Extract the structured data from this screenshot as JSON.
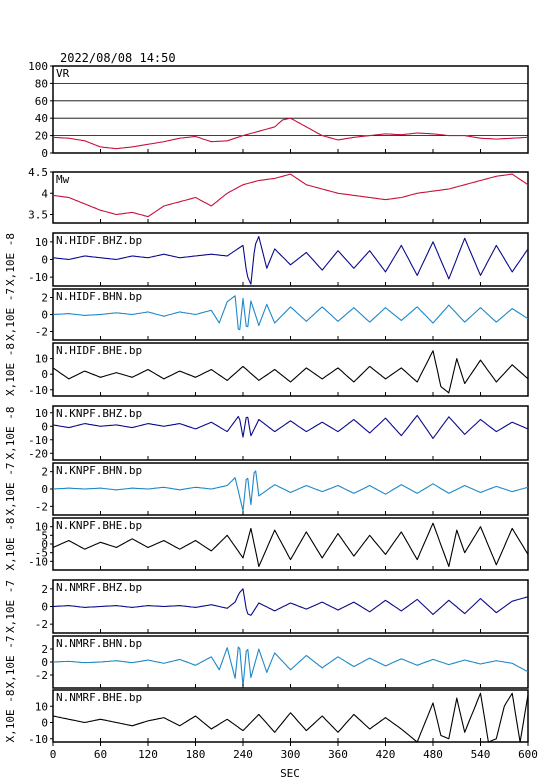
{
  "header": {
    "timestamp": "2022/08/08  14:50"
  },
  "colors": {
    "red": "#c8103c",
    "navy": "#0a0a8c",
    "cyan": "#1e88c8",
    "black": "#000000"
  },
  "chart_data": {
    "type": "line",
    "xlabel": "SEC",
    "xlim": [
      0,
      600
    ],
    "xticks": [
      0,
      60,
      120,
      180,
      240,
      300,
      360,
      420,
      480,
      540,
      600
    ],
    "panels": [
      {
        "label": "VR",
        "ylabel": "",
        "ylim": [
          0,
          100
        ],
        "yticks": [
          0,
          20,
          40,
          60,
          80,
          100
        ],
        "grid": true,
        "color": "red",
        "x": [
          0,
          20,
          40,
          60,
          80,
          100,
          120,
          140,
          160,
          180,
          200,
          220,
          240,
          260,
          280,
          290,
          300,
          320,
          340,
          360,
          380,
          400,
          420,
          440,
          460,
          480,
          500,
          520,
          540,
          560,
          580,
          600
        ],
        "y": [
          18,
          17,
          14,
          7,
          5,
          7,
          10,
          13,
          17,
          19,
          13,
          14,
          20,
          25,
          30,
          38,
          40,
          30,
          20,
          15,
          18,
          20,
          22,
          21,
          23,
          22,
          20,
          20,
          17,
          16,
          17,
          18
        ]
      },
      {
        "label": "Mw",
        "ylabel": "",
        "ylim": [
          3.3,
          4.5
        ],
        "yticks": [
          3.5,
          4.0,
          4.5
        ],
        "grid": false,
        "color": "red",
        "x": [
          0,
          20,
          40,
          60,
          80,
          100,
          120,
          140,
          160,
          180,
          200,
          220,
          240,
          260,
          280,
          300,
          320,
          340,
          360,
          380,
          400,
          420,
          440,
          460,
          480,
          500,
          520,
          540,
          560,
          580,
          600
        ],
        "y": [
          3.95,
          3.9,
          3.75,
          3.6,
          3.5,
          3.55,
          3.45,
          3.7,
          3.8,
          3.9,
          3.7,
          4.0,
          4.2,
          4.3,
          4.35,
          4.45,
          4.2,
          4.1,
          4.0,
          3.95,
          3.9,
          3.85,
          3.9,
          4.0,
          4.05,
          4.1,
          4.2,
          4.3,
          4.4,
          4.45,
          4.2
        ]
      },
      {
        "label": "N.HIDF.BHZ.bp",
        "ylabel": "X,10E -8",
        "ylim": [
          -15,
          15
        ],
        "yticks": [
          -10,
          0,
          10
        ],
        "color": "navy",
        "x": [
          0,
          20,
          40,
          60,
          80,
          100,
          120,
          140,
          160,
          180,
          200,
          220,
          230,
          240,
          245,
          250,
          255,
          260,
          270,
          280,
          300,
          320,
          340,
          360,
          380,
          400,
          420,
          440,
          460,
          480,
          500,
          520,
          540,
          560,
          580,
          600
        ],
        "y": [
          1,
          0,
          2,
          1,
          0,
          2,
          1,
          3,
          1,
          2,
          3,
          2,
          5,
          8,
          -9,
          -14,
          8,
          13,
          -5,
          6,
          -3,
          4,
          -6,
          5,
          -5,
          5,
          -7,
          8,
          -9,
          10,
          -11,
          12,
          -9,
          8,
          -7,
          6
        ]
      },
      {
        "label": "N.HIDF.BHN.bp",
        "ylabel": "X,10E -7",
        "ylim": [
          -3,
          3
        ],
        "yticks": [
          -2,
          0,
          2
        ],
        "color": "cyan",
        "x": [
          0,
          20,
          40,
          60,
          80,
          100,
          120,
          140,
          160,
          180,
          200,
          210,
          220,
          230,
          235,
          240,
          245,
          250,
          260,
          270,
          280,
          300,
          320,
          340,
          360,
          380,
          400,
          420,
          440,
          460,
          480,
          500,
          520,
          540,
          560,
          580,
          600
        ],
        "y": [
          0,
          0.1,
          -0.1,
          0,
          0.2,
          0,
          0.3,
          -0.2,
          0.3,
          0,
          0.5,
          -1,
          1.5,
          2.2,
          -2.7,
          1.9,
          -2.2,
          1.6,
          -1.3,
          1.2,
          -1,
          0.9,
          -0.8,
          0.9,
          -0.8,
          0.8,
          -0.9,
          0.8,
          -0.7,
          0.9,
          -1,
          1.1,
          -0.9,
          0.8,
          -0.9,
          0.7,
          -0.5
        ]
      },
      {
        "label": "N.HIDF.BHE.bp",
        "ylabel": "X,10E -8",
        "ylim": [
          -14,
          20
        ],
        "yticks": [
          -10,
          0,
          10
        ],
        "color": "black",
        "x": [
          0,
          20,
          40,
          60,
          80,
          100,
          120,
          140,
          160,
          180,
          200,
          220,
          240,
          260,
          280,
          300,
          320,
          340,
          360,
          380,
          400,
          420,
          440,
          460,
          480,
          490,
          500,
          510,
          520,
          540,
          560,
          580,
          600
        ],
        "y": [
          4,
          -3,
          2,
          -2,
          1,
          -2,
          3,
          -3,
          2,
          -2,
          3,
          -4,
          5,
          -4,
          3,
          -5,
          4,
          -3,
          4,
          -5,
          5,
          -3,
          4,
          -5,
          15,
          -8,
          -12,
          10,
          -6,
          9,
          -5,
          6,
          -3
        ]
      },
      {
        "label": "N.KNPF.BHZ.bp",
        "ylabel": "X,10E -8",
        "ylim": [
          -25,
          15
        ],
        "yticks": [
          -20,
          -10,
          0,
          10
        ],
        "color": "navy",
        "x": [
          0,
          20,
          40,
          60,
          80,
          100,
          120,
          140,
          160,
          180,
          200,
          220,
          235,
          240,
          245,
          250,
          260,
          280,
          300,
          320,
          340,
          360,
          380,
          400,
          420,
          440,
          460,
          480,
          500,
          520,
          540,
          560,
          580,
          600
        ],
        "y": [
          1,
          -1,
          2,
          0,
          1,
          -1,
          2,
          0,
          2,
          -2,
          3,
          -4,
          8,
          -8,
          10,
          -7,
          5,
          -4,
          4,
          -4,
          3,
          -4,
          5,
          -5,
          6,
          -7,
          8,
          -9,
          7,
          -6,
          5,
          -4,
          3,
          -2
        ]
      },
      {
        "label": "N.KNPF.BHN.bp",
        "ylabel": "X,10E -7",
        "ylim": [
          -3,
          3
        ],
        "yticks": [
          -2,
          0,
          2
        ],
        "color": "cyan",
        "x": [
          0,
          20,
          40,
          60,
          80,
          100,
          120,
          140,
          160,
          180,
          200,
          220,
          230,
          240,
          245,
          250,
          255,
          260,
          280,
          300,
          320,
          340,
          360,
          380,
          400,
          420,
          440,
          460,
          480,
          500,
          520,
          540,
          560,
          580,
          600
        ],
        "y": [
          0,
          0.1,
          0,
          0.1,
          -0.1,
          0.1,
          0,
          0.2,
          -0.1,
          0.2,
          0,
          0.4,
          1.3,
          -2.5,
          2,
          -1.8,
          2.8,
          -0.8,
          0.5,
          -0.4,
          0.4,
          -0.3,
          0.4,
          -0.5,
          0.4,
          -0.6,
          0.5,
          -0.5,
          0.6,
          -0.5,
          0.4,
          -0.4,
          0.3,
          -0.3,
          0.2
        ]
      },
      {
        "label": "N.KNPF.BHE.bp",
        "ylabel": "X,10E -8",
        "ylim": [
          -15,
          15
        ],
        "yticks": [
          -10,
          -5,
          0,
          5,
          10
        ],
        "color": "black",
        "x": [
          0,
          20,
          40,
          60,
          80,
          100,
          120,
          140,
          160,
          180,
          200,
          220,
          240,
          250,
          260,
          280,
          300,
          320,
          340,
          360,
          380,
          400,
          420,
          440,
          460,
          480,
          500,
          510,
          520,
          540,
          560,
          580,
          600
        ],
        "y": [
          -2,
          2,
          -3,
          1,
          -2,
          3,
          -2,
          2,
          -3,
          2,
          -4,
          5,
          -8,
          9,
          -13,
          8,
          -9,
          7,
          -8,
          6,
          -7,
          5,
          -6,
          7,
          -9,
          12,
          -13,
          8,
          -5,
          10,
          -12,
          9,
          -6
        ]
      },
      {
        "label": "N.NMRF.BHZ.bp",
        "ylabel": "X,10E -7",
        "ylim": [
          -3,
          3
        ],
        "yticks": [
          -2,
          0,
          2
        ],
        "color": "navy",
        "x": [
          0,
          20,
          40,
          60,
          80,
          100,
          120,
          140,
          160,
          180,
          200,
          220,
          230,
          235,
          240,
          245,
          250,
          260,
          280,
          300,
          320,
          340,
          360,
          380,
          400,
          420,
          440,
          460,
          480,
          500,
          520,
          540,
          560,
          580,
          600
        ],
        "y": [
          0,
          0.1,
          -0.1,
          0,
          0.1,
          -0.1,
          0.1,
          0,
          0.1,
          -0.1,
          0.2,
          -0.2,
          0.5,
          1.5,
          2,
          -0.8,
          -1,
          0.4,
          -0.5,
          0.4,
          -0.3,
          0.5,
          -0.4,
          0.5,
          -0.6,
          0.7,
          -0.5,
          0.8,
          -0.9,
          0.7,
          -0.8,
          0.9,
          -0.7,
          0.6,
          1.1
        ]
      },
      {
        "label": "N.NMRF.BHN.bp",
        "ylabel": "X,10E -7",
        "ylim": [
          -4,
          4
        ],
        "yticks": [
          -2,
          0,
          2
        ],
        "color": "cyan",
        "x": [
          0,
          20,
          40,
          60,
          80,
          100,
          120,
          140,
          160,
          180,
          200,
          210,
          220,
          230,
          235,
          240,
          245,
          250,
          260,
          270,
          280,
          300,
          320,
          340,
          360,
          380,
          400,
          420,
          440,
          460,
          480,
          500,
          520,
          540,
          560,
          580,
          600
        ],
        "y": [
          0,
          0.1,
          -0.1,
          0,
          0.2,
          -0.1,
          0.3,
          -0.2,
          0.4,
          -0.5,
          0.8,
          -1.2,
          2.2,
          -2.5,
          3.5,
          -3.8,
          3,
          -2.4,
          2,
          -1.6,
          1.4,
          -1.2,
          1,
          -0.9,
          0.8,
          -0.7,
          0.6,
          -0.6,
          0.5,
          -0.5,
          0.4,
          -0.4,
          0.3,
          -0.3,
          0.2,
          -0.2,
          -1.5
        ]
      },
      {
        "label": "N.NMRF.BHE.bp",
        "ylabel": "X,10E -8",
        "ylim": [
          -12,
          20
        ],
        "yticks": [
          -10,
          0,
          10
        ],
        "color": "black",
        "x": [
          0,
          20,
          40,
          60,
          80,
          100,
          120,
          140,
          160,
          180,
          200,
          220,
          240,
          260,
          280,
          300,
          320,
          340,
          360,
          380,
          400,
          420,
          440,
          460,
          470,
          480,
          490,
          500,
          510,
          520,
          540,
          550,
          560,
          570,
          580,
          590,
          600
        ],
        "y": [
          4,
          2,
          0,
          2,
          0,
          -2,
          1,
          3,
          -2,
          4,
          -4,
          2,
          -5,
          5,
          -6,
          6,
          -5,
          4,
          -6,
          5,
          -4,
          3,
          -4,
          -12,
          0,
          12,
          -8,
          -10,
          15,
          -6,
          18,
          -12,
          -10,
          10,
          18,
          -12,
          17
        ]
      }
    ]
  }
}
